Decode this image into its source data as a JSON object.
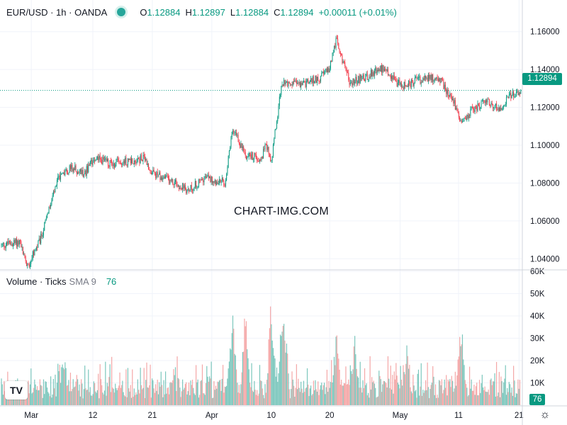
{
  "header": {
    "symbol": "EUR/USD · 1h · OANDA",
    "open_label": "O",
    "open": "1.12884",
    "high_label": "H",
    "high": "1.12897",
    "low_label": "L",
    "low": "1.12884",
    "close_label": "C",
    "close": "1.12894",
    "change": "+0.00011 (+0.01%)"
  },
  "watermark": "CHART-IMG.COM",
  "volume_legend": {
    "name": "Volume · Ticks",
    "sma": "SMA 9",
    "value": "76"
  },
  "last_price_label": "1.12894",
  "last_volume_label": "76",
  "logo_text": "TV",
  "settings_icon": "gear-icon",
  "colors": {
    "up": "#089981",
    "down": "#f23645",
    "up_vol": "#7cc7bd",
    "down_vol": "#f4a7a7",
    "grid": "#f0f3fa"
  },
  "chart_data": [
    {
      "type": "candlestick",
      "title": "EUR/USD · 1h · OANDA",
      "ylim": [
        1.0345,
        1.1655
      ],
      "y_ticks": [
        "1.16000",
        "1.14000",
        "1.12000",
        "1.10000",
        "1.08000",
        "1.06000",
        "1.04000"
      ],
      "x_ticks": [
        "Mar",
        "12",
        "21",
        "Apr",
        "10",
        "20",
        "May",
        "11",
        "21"
      ],
      "last_price": 1.12894,
      "path_points": [
        {
          "t": 0.0,
          "y": 1.047
        },
        {
          "t": 0.035,
          "y": 1.049
        },
        {
          "t": 0.05,
          "y": 1.036
        },
        {
          "t": 0.075,
          "y": 1.05
        },
        {
          "t": 0.11,
          "y": 1.083
        },
        {
          "t": 0.135,
          "y": 1.088
        },
        {
          "t": 0.16,
          "y": 1.085
        },
        {
          "t": 0.18,
          "y": 1.094
        },
        {
          "t": 0.21,
          "y": 1.09
        },
        {
          "t": 0.25,
          "y": 1.092
        },
        {
          "t": 0.275,
          "y": 1.093
        },
        {
          "t": 0.29,
          "y": 1.085
        },
        {
          "t": 0.32,
          "y": 1.082
        },
        {
          "t": 0.36,
          "y": 1.076
        },
        {
          "t": 0.39,
          "y": 1.083
        },
        {
          "t": 0.43,
          "y": 1.08
        },
        {
          "t": 0.445,
          "y": 1.108
        },
        {
          "t": 0.47,
          "y": 1.095
        },
        {
          "t": 0.5,
          "y": 1.093
        },
        {
          "t": 0.51,
          "y": 1.1
        },
        {
          "t": 0.52,
          "y": 1.092
        },
        {
          "t": 0.54,
          "y": 1.133
        },
        {
          "t": 0.58,
          "y": 1.132
        },
        {
          "t": 0.615,
          "y": 1.136
        },
        {
          "t": 0.63,
          "y": 1.14
        },
        {
          "t": 0.645,
          "y": 1.156
        },
        {
          "t": 0.67,
          "y": 1.133
        },
        {
          "t": 0.7,
          "y": 1.136
        },
        {
          "t": 0.735,
          "y": 1.141
        },
        {
          "t": 0.77,
          "y": 1.131
        },
        {
          "t": 0.8,
          "y": 1.134
        },
        {
          "t": 0.84,
          "y": 1.136
        },
        {
          "t": 0.87,
          "y": 1.124
        },
        {
          "t": 0.885,
          "y": 1.112
        },
        {
          "t": 0.9,
          "y": 1.117
        },
        {
          "t": 0.93,
          "y": 1.123
        },
        {
          "t": 0.96,
          "y": 1.12
        },
        {
          "t": 0.98,
          "y": 1.126
        },
        {
          "t": 1.0,
          "y": 1.12894
        }
      ]
    },
    {
      "type": "bar",
      "title": "Volume · Ticks",
      "ylim": [
        0,
        60000
      ],
      "y_ticks": [
        "60K",
        "50K",
        "40K",
        "30K",
        "20K",
        "10K"
      ],
      "last_value": 76,
      "spike_points": [
        {
          "t": 0.445,
          "v": 47000
        },
        {
          "t": 0.47,
          "v": 49000
        },
        {
          "t": 0.52,
          "v": 54000
        },
        {
          "t": 0.545,
          "v": 48000
        },
        {
          "t": 0.54,
          "v": 42000
        },
        {
          "t": 0.645,
          "v": 36000
        },
        {
          "t": 0.68,
          "v": 33000
        },
        {
          "t": 0.885,
          "v": 42000
        },
        {
          "t": 0.12,
          "v": 28000
        },
        {
          "t": 0.78,
          "v": 29000
        }
      ]
    }
  ]
}
